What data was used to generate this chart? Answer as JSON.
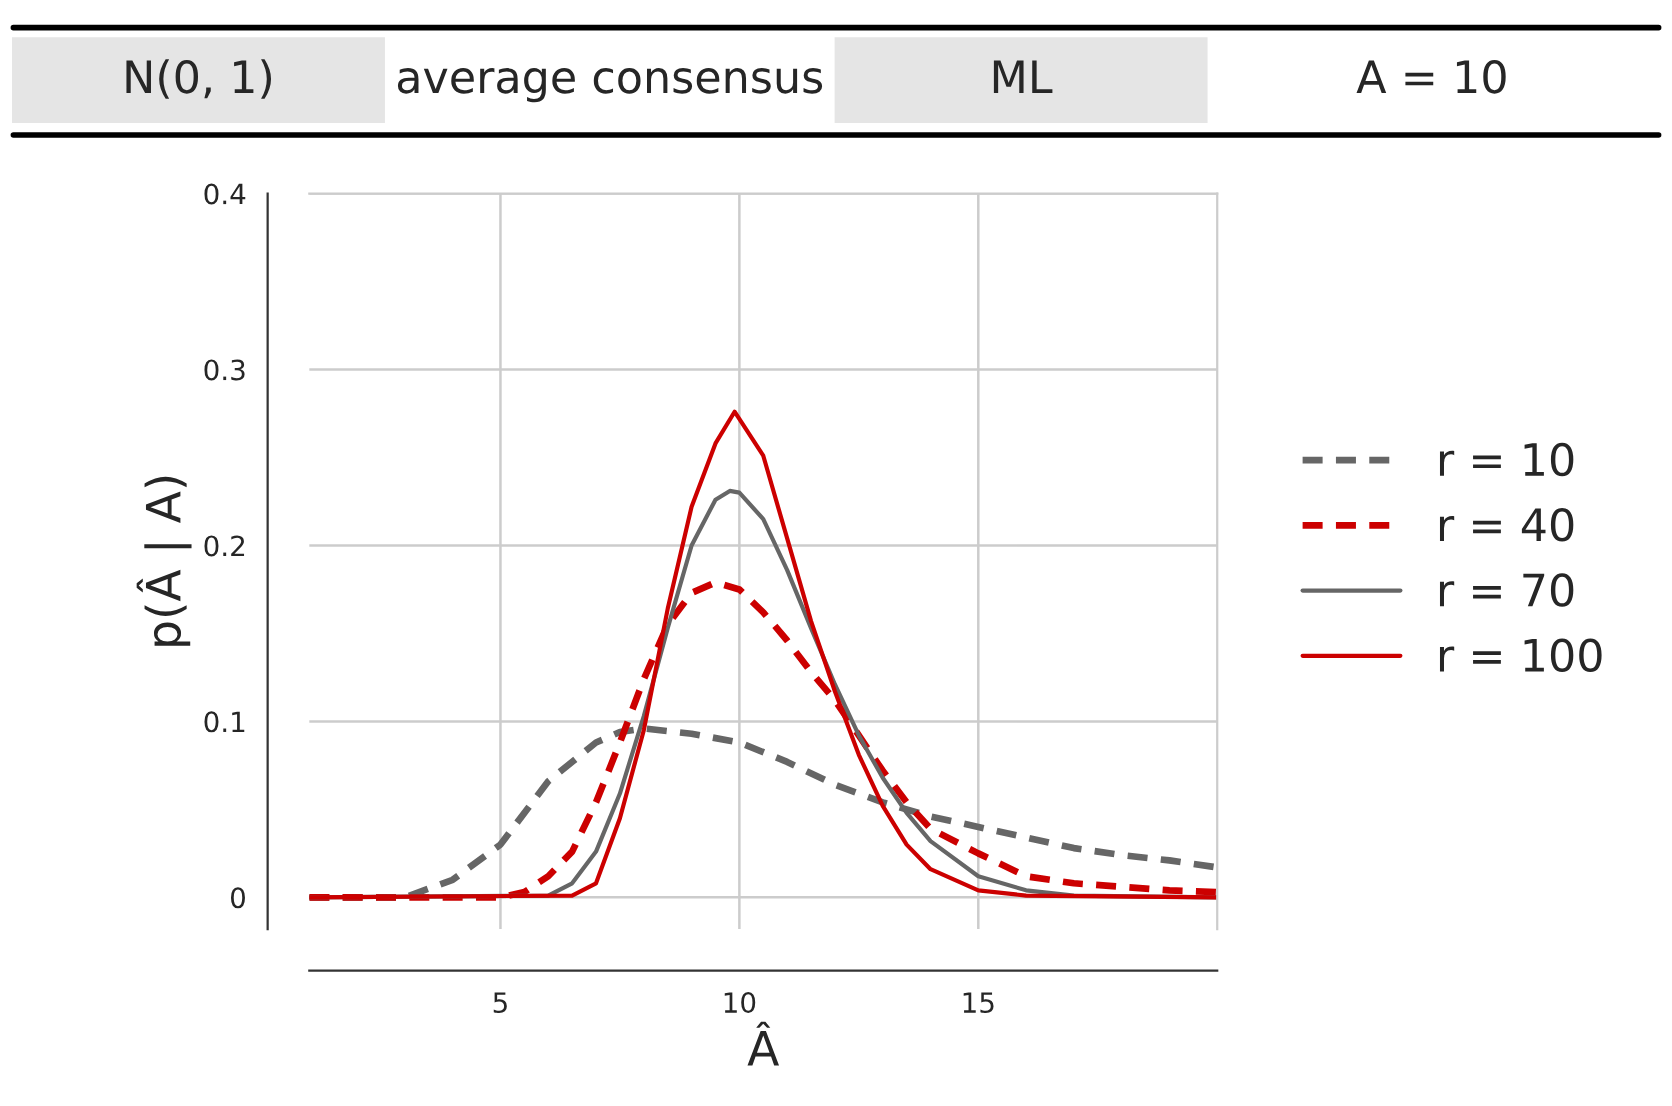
{
  "chart_data": {
    "type": "line",
    "annotations": [
      "N(0, 1)",
      "average consensus",
      "ML",
      "A = 10"
    ],
    "xlabel": "Â",
    "ylabel": "p(Â | A)",
    "xlim": [
      1,
      20
    ],
    "xticks": [
      5,
      10,
      15
    ],
    "ylim": [
      -0.018,
      0.4
    ],
    "yticks": [
      0,
      0.1,
      0.2,
      0.3,
      0.4
    ],
    "grid": true,
    "legend": "right",
    "series": [
      {
        "name": "r = 10",
        "color": "#666666",
        "line_style": "dashed",
        "x": [
          1,
          3,
          4,
          5,
          6,
          7,
          7.5,
          8,
          9,
          10,
          11,
          12,
          13,
          14,
          15,
          16,
          17,
          18,
          19,
          20
        ],
        "values": [
          0,
          0,
          0.01,
          0.03,
          0.066,
          0.088,
          0.094,
          0.096,
          0.093,
          0.088,
          0.077,
          0.064,
          0.054,
          0.046,
          0.04,
          0.034,
          0.028,
          0.024,
          0.021,
          0.017
        ]
      },
      {
        "name": "r = 40",
        "color": "#cc0000",
        "line_style": "dashed",
        "x": [
          1,
          5,
          5.5,
          6,
          6.5,
          7,
          7.5,
          8,
          8.5,
          9,
          9.5,
          10,
          10.5,
          11,
          11.5,
          12,
          12.5,
          13,
          13.5,
          14,
          15,
          16,
          17,
          18,
          19,
          20
        ],
        "values": [
          0,
          0,
          0.003,
          0.012,
          0.026,
          0.054,
          0.088,
          0.124,
          0.155,
          0.173,
          0.179,
          0.175,
          0.162,
          0.146,
          0.128,
          0.112,
          0.092,
          0.072,
          0.054,
          0.039,
          0.025,
          0.012,
          0.008,
          0.006,
          0.004,
          0.003
        ]
      },
      {
        "name": "r = 70",
        "color": "#666666",
        "line_style": "solid",
        "x": [
          1,
          6,
          6.5,
          7,
          7.5,
          8,
          8.5,
          9,
          9.5,
          9.8,
          10,
          10.5,
          11,
          11.5,
          12,
          12.5,
          13,
          13.5,
          14,
          15,
          16,
          17,
          20
        ],
        "values": [
          0,
          0.001,
          0.008,
          0.026,
          0.059,
          0.103,
          0.153,
          0.2,
          0.226,
          0.231,
          0.23,
          0.215,
          0.186,
          0.153,
          0.121,
          0.092,
          0.068,
          0.048,
          0.032,
          0.012,
          0.004,
          0.001,
          0
        ]
      },
      {
        "name": "r = 100",
        "color": "#cc0000",
        "line_style": "solid",
        "x": [
          1,
          6.5,
          7,
          7.5,
          8,
          8.5,
          9,
          9.5,
          9.9,
          10.5,
          11,
          11.5,
          12,
          12.5,
          13,
          13.5,
          14,
          15,
          16,
          20
        ],
        "values": [
          0,
          0.001,
          0.008,
          0.045,
          0.095,
          0.164,
          0.222,
          0.258,
          0.276,
          0.251,
          0.204,
          0.157,
          0.117,
          0.081,
          0.052,
          0.03,
          0.016,
          0.004,
          0.001,
          0
        ]
      }
    ]
  }
}
